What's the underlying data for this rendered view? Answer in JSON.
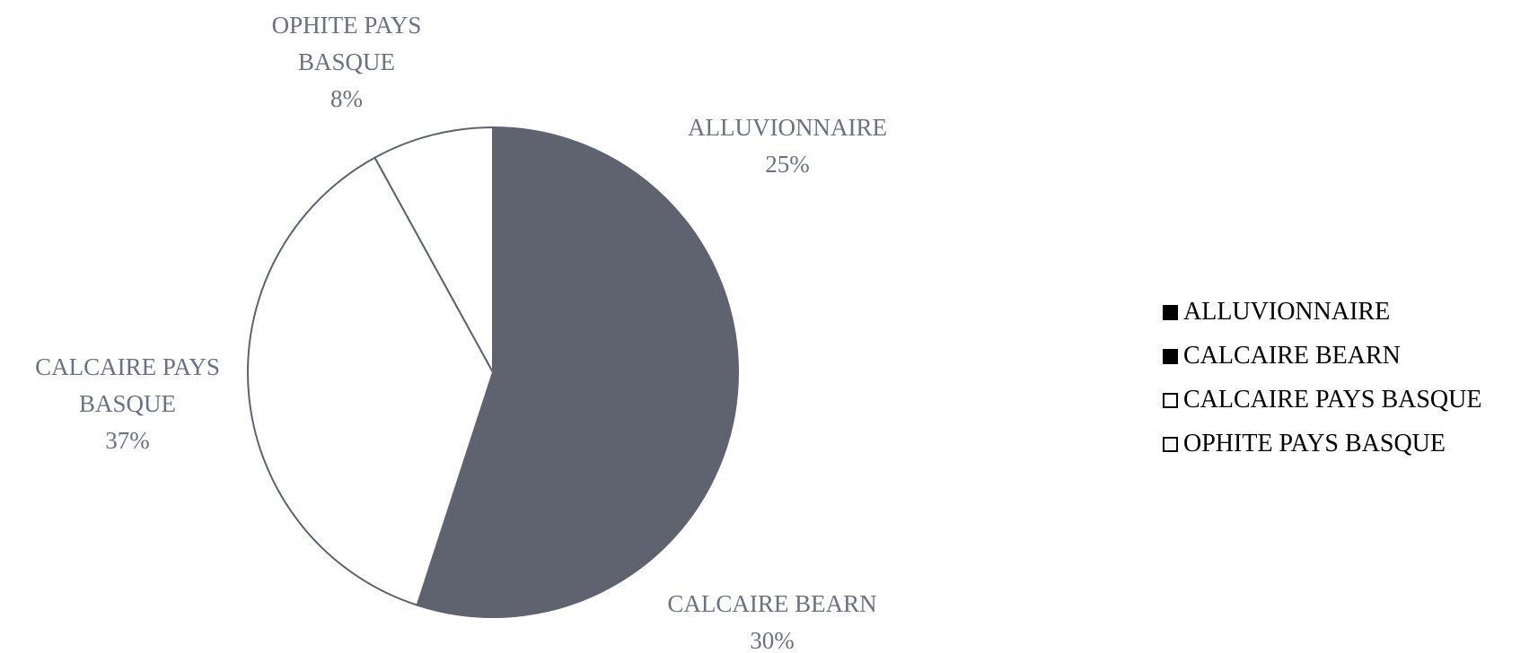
{
  "chart_data": {
    "type": "pie",
    "categories": [
      "ALLUVIONNAIRE",
      "CALCAIRE BEARN",
      "CALCAIRE PAYS BASQUE",
      "OPHITE PAYS BASQUE"
    ],
    "values": [
      25,
      30,
      37,
      8
    ],
    "value_labels": [
      "25%",
      "30%",
      "37%",
      "8%"
    ],
    "colors": [
      "#5f6370",
      "#5f6370",
      "#ffffff",
      "#ffffff"
    ],
    "legend": "right"
  }
}
